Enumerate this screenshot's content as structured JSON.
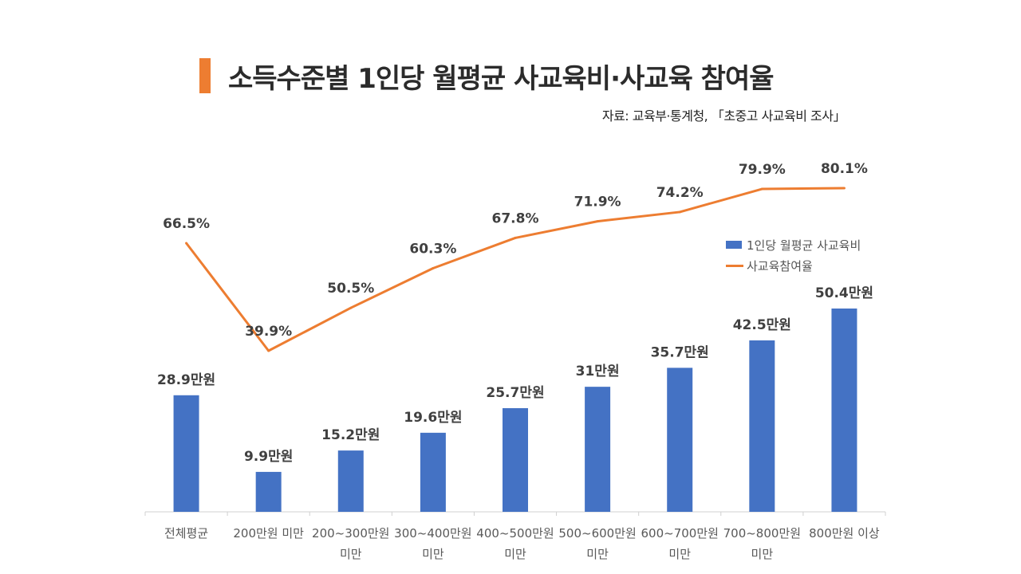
{
  "title": "소득수준별 1인당 월평균 사교육비·사교육 참여율",
  "source": "자료: 교육부·통계청, 「초중고 사교육비 조사」",
  "colors": {
    "accent": "#ED7D31",
    "bar": "#4472C4",
    "line": "#ED7D31",
    "axis": "#d0d0d0",
    "label": "#404040",
    "tick": "#595959"
  },
  "legend": {
    "bar": "1인당 월평균 사교육비",
    "line": "사교육참여율"
  },
  "chart_data": {
    "type": "bar",
    "categories": [
      [
        "전체평균"
      ],
      [
        "200만원 미만"
      ],
      [
        "200~300만원",
        "미만"
      ],
      [
        "300~400만원",
        "미만"
      ],
      [
        "400~500만원",
        "미만"
      ],
      [
        "500~600만원",
        "미만"
      ],
      [
        "600~700만원",
        "미만"
      ],
      [
        "700~800만원",
        "미만"
      ],
      [
        "800만원 이상"
      ]
    ],
    "series": [
      {
        "name": "1인당 월평균 사교육비",
        "type": "bar",
        "unit": "만원",
        "values": [
          28.9,
          9.9,
          15.2,
          19.6,
          25.7,
          31,
          35.7,
          42.5,
          50.4
        ],
        "labels": [
          "28.9만원",
          "9.9만원",
          "15.2만원",
          "19.6만원",
          "25.7만원",
          "31만원",
          "35.7만원",
          "42.5만원",
          "50.4만원"
        ]
      },
      {
        "name": "사교육참여율",
        "type": "line",
        "unit": "%",
        "values": [
          66.5,
          39.9,
          50.5,
          60.3,
          67.8,
          71.9,
          74.2,
          79.9,
          80.1
        ],
        "labels": [
          "66.5%",
          "39.9%",
          "50.5%",
          "60.3%",
          "67.8%",
          "71.9%",
          "74.2%",
          "79.9%",
          "80.1%"
        ]
      }
    ],
    "bar_ylim": [
      0,
      50.4
    ],
    "line_ylim": [
      39.9,
      80.1
    ],
    "title": "소득수준별 1인당 월평균 사교육비·사교육 참여율",
    "legend_position": "right"
  }
}
